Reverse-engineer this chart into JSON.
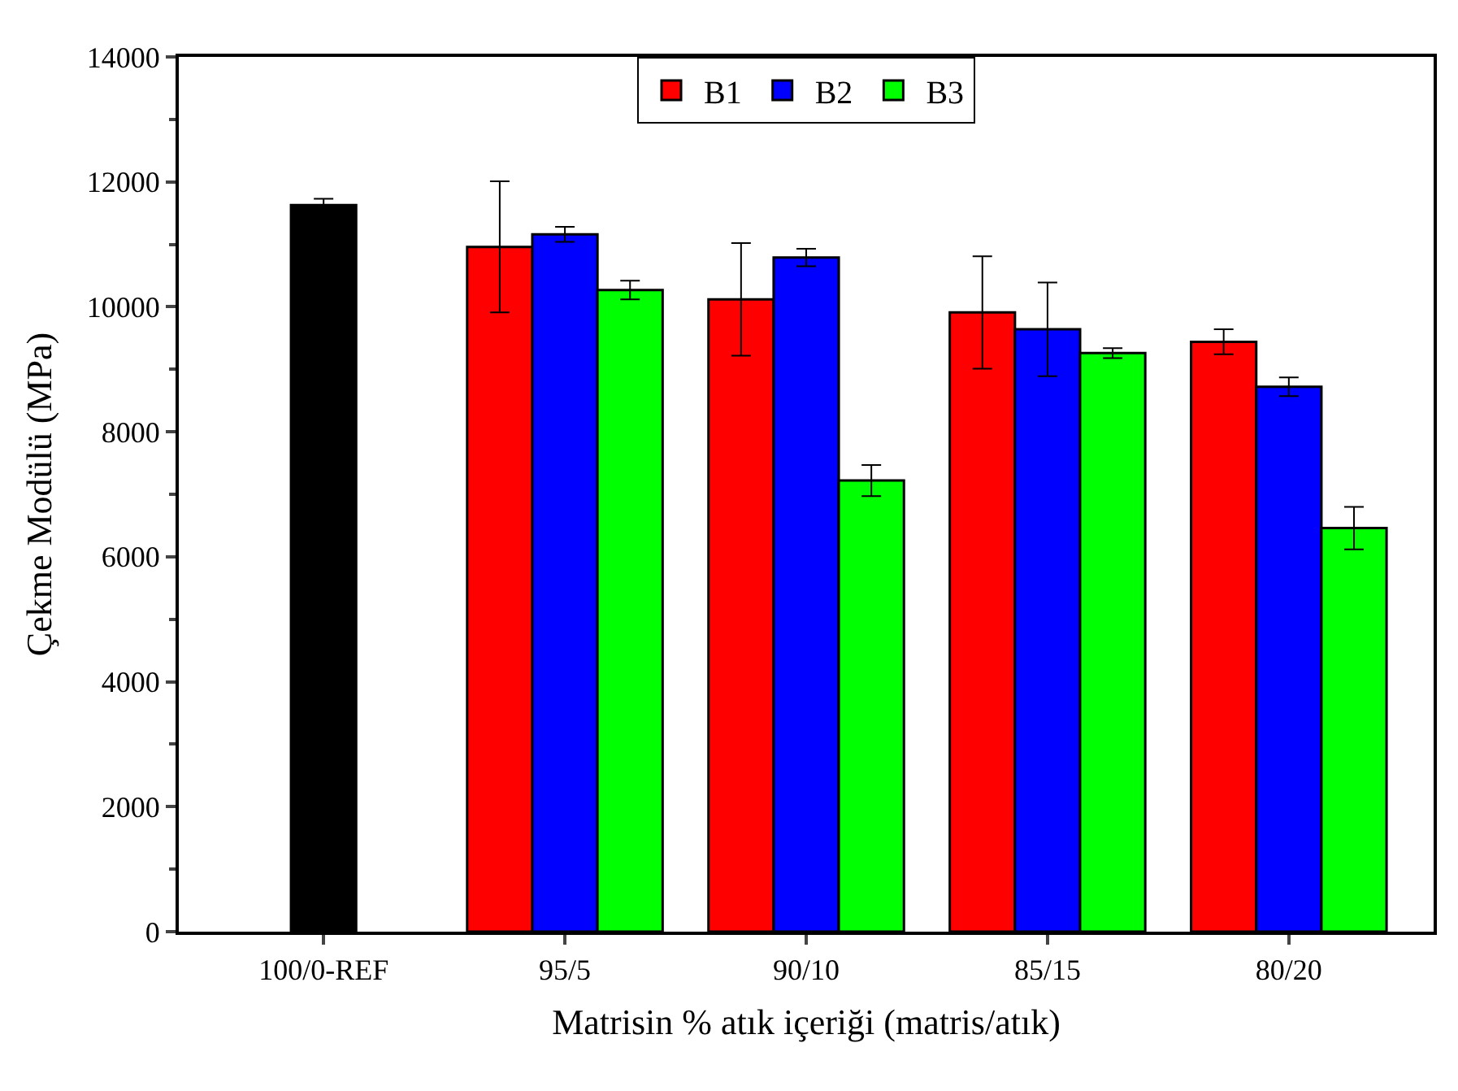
{
  "chart_data": {
    "type": "bar",
    "xlabel": "Matrisin % atık içeriği (matris/atık)",
    "ylabel": "Çekme Modülü (MPa)",
    "categories": [
      "100/0-REF",
      "95/5",
      "90/10",
      "85/15",
      "80/20"
    ],
    "series": [
      {
        "color": "#000000",
        "values": [
          11630,
          null,
          null,
          null,
          null
        ],
        "errors": [
          100,
          null,
          null,
          null,
          null
        ]
      },
      {
        "name": "B1",
        "color": "#ff0000",
        "values": [
          null,
          10960,
          10120,
          9910,
          9440
        ],
        "errors": [
          null,
          1050,
          900,
          900,
          200
        ]
      },
      {
        "name": "B2",
        "color": "#0000ff",
        "values": [
          null,
          11160,
          10790,
          9640,
          8720
        ],
        "errors": [
          null,
          120,
          140,
          750,
          150
        ]
      },
      {
        "name": "B3",
        "color": "#00ff00",
        "values": [
          null,
          10270,
          7220,
          9260,
          6460
        ],
        "errors": [
          null,
          150,
          250,
          80,
          340
        ]
      }
    ],
    "ylim": [
      0,
      14000
    ],
    "yticks": [
      0,
      2000,
      4000,
      6000,
      8000,
      10000,
      12000,
      14000
    ],
    "legend": "top"
  }
}
